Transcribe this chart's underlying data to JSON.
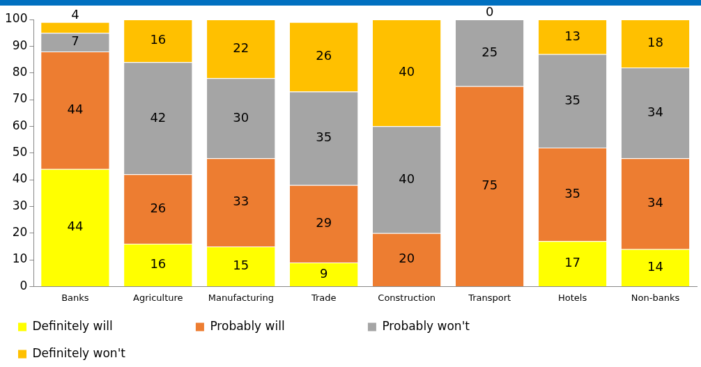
{
  "chart_data": {
    "type": "bar",
    "stacked": true,
    "categories": [
      "Banks",
      "Agriculture",
      "Manufacturing",
      "Trade",
      "Construction",
      "Transport",
      "Hotels",
      "Non-banks"
    ],
    "series": [
      {
        "name": "Definitely will",
        "color": "#ffff00",
        "values": [
          44,
          16,
          15,
          9,
          0,
          0,
          17,
          14
        ],
        "value_labels": [
          "44",
          "16",
          "15",
          "9",
          null,
          null,
          "17",
          "14"
        ]
      },
      {
        "name": "Probably will",
        "color": "#ed7d31",
        "values": [
          44,
          26,
          33,
          29,
          20,
          75,
          35,
          34
        ],
        "value_labels": [
          "44",
          "26",
          "33",
          "29",
          "20",
          "75",
          "35",
          "34"
        ]
      },
      {
        "name": "Probably won't",
        "color": "#a5a5a5",
        "values": [
          7,
          42,
          30,
          35,
          40,
          25,
          35,
          34
        ],
        "value_labels": [
          "7",
          "42",
          "30",
          "35",
          "40",
          "25",
          "35",
          "34"
        ]
      },
      {
        "name": "Definitely won't",
        "color": "#ffc000",
        "values": [
          4,
          16,
          22,
          26,
          40,
          0,
          13,
          18
        ],
        "value_labels": [
          "4",
          "16",
          "22",
          "26",
          "40",
          "0",
          "13",
          "18"
        ]
      }
    ],
    "ylim": [
      0,
      100
    ],
    "yticks": [
      0,
      10,
      20,
      30,
      40,
      50,
      60,
      70,
      80,
      90,
      100
    ],
    "grid": false,
    "legend": "bottom"
  }
}
